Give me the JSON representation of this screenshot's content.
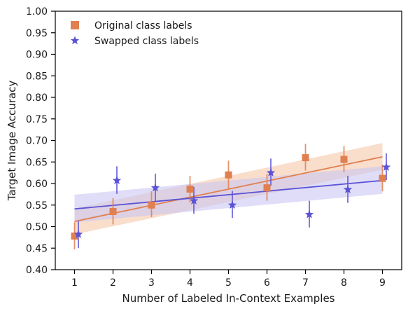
{
  "chart_data": {
    "type": "scatter",
    "title": "",
    "xlabel": "Number of Labeled In-Context Examples",
    "ylabel": "Target Image Accuracy",
    "xlim": [
      0.5,
      9.5
    ],
    "ylim": [
      0.4,
      1.0
    ],
    "x_ticks": [
      1,
      2,
      3,
      4,
      5,
      6,
      7,
      8,
      9
    ],
    "y_ticks": [
      0.4,
      0.45,
      0.5,
      0.55,
      0.6,
      0.65,
      0.7,
      0.75,
      0.8,
      0.85,
      0.9,
      0.95,
      1.0
    ],
    "legend_position": "top-left",
    "grid": false,
    "series": [
      {
        "name": "Original class labels",
        "marker": "square",
        "color": "#e07f4f",
        "band_color": "#f4c2a3",
        "x": [
          1,
          2,
          3,
          4,
          5,
          6,
          7,
          8,
          9
        ],
        "y": [
          0.478,
          0.535,
          0.55,
          0.587,
          0.62,
          0.59,
          0.66,
          0.656,
          0.612
        ],
        "err_low": [
          0.447,
          0.505,
          0.522,
          0.556,
          0.588,
          0.56,
          0.63,
          0.626,
          0.582
        ],
        "err_high": [
          0.51,
          0.566,
          0.582,
          0.618,
          0.653,
          0.622,
          0.692,
          0.687,
          0.644
        ],
        "fit": {
          "x": [
            1,
            9
          ],
          "y": [
            0.512,
            0.662
          ]
        },
        "band_low": [
          0.482,
          0.632
        ],
        "band_high": [
          0.542,
          0.694
        ]
      },
      {
        "name": "Swapped class labels",
        "marker": "star",
        "color": "#5b52d6",
        "band_color": "#c9c6f2",
        "x": [
          1.1,
          2.1,
          3.1,
          4.1,
          5.1,
          6.1,
          7.1,
          8.1,
          9.1
        ],
        "y": [
          0.482,
          0.607,
          0.59,
          0.56,
          0.55,
          0.625,
          0.528,
          0.586,
          0.638
        ],
        "err_low": [
          0.45,
          0.576,
          0.558,
          0.53,
          0.52,
          0.595,
          0.498,
          0.555,
          0.608
        ],
        "err_high": [
          0.513,
          0.64,
          0.623,
          0.592,
          0.583,
          0.658,
          0.56,
          0.618,
          0.67
        ],
        "fit": {
          "x": [
            1,
            9
          ],
          "y": [
            0.541,
            0.607
          ]
        },
        "band_low": [
          0.51,
          0.576
        ],
        "band_high": [
          0.574,
          0.64
        ]
      }
    ]
  }
}
